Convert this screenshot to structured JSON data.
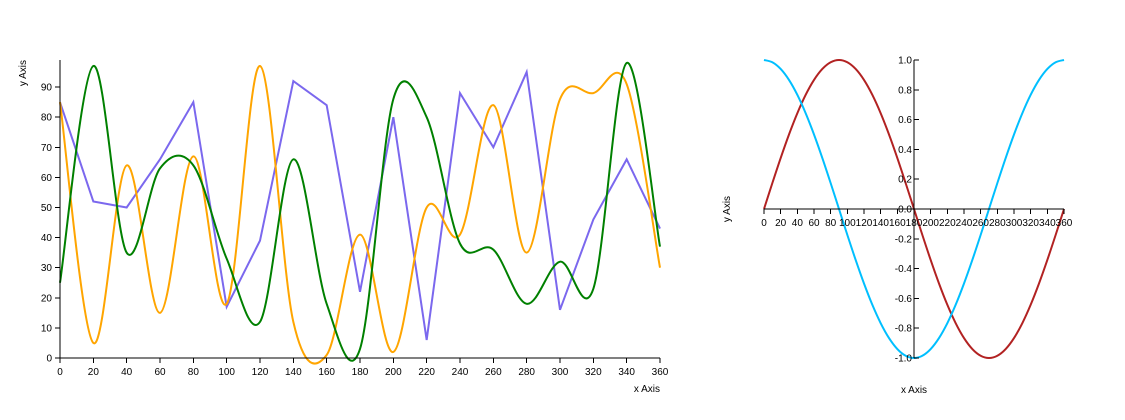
{
  "chart_data": [
    {
      "type": "line",
      "xlabel": "x Axis",
      "ylabel": "y Axis",
      "xlim": [
        0,
        360
      ],
      "ylim": [
        0,
        99
      ],
      "x_ticks": [
        0,
        20,
        40,
        60,
        80,
        100,
        120,
        140,
        160,
        180,
        200,
        220,
        240,
        260,
        280,
        300,
        320,
        340,
        360
      ],
      "y_ticks": [
        0,
        10,
        20,
        30,
        40,
        50,
        60,
        70,
        80,
        90
      ],
      "grid": false,
      "series": [
        {
          "color": "#7b68ee",
          "curve": "linear",
          "points": [
            [
              0,
              85
            ],
            [
              20,
              52
            ],
            [
              40,
              50
            ],
            [
              60,
              66
            ],
            [
              80,
              85
            ],
            [
              100,
              17
            ],
            [
              120,
              39
            ],
            [
              140,
              92
            ],
            [
              160,
              84
            ],
            [
              180,
              22
            ],
            [
              200,
              80
            ],
            [
              220,
              6
            ],
            [
              240,
              88
            ],
            [
              260,
              70
            ],
            [
              280,
              95
            ],
            [
              300,
              16
            ],
            [
              320,
              46
            ],
            [
              340,
              66
            ],
            [
              360,
              43
            ]
          ]
        },
        {
          "color": "#ffa500",
          "curve": "smooth",
          "points": [
            [
              0,
              85
            ],
            [
              20,
              5
            ],
            [
              40,
              64
            ],
            [
              60,
              15
            ],
            [
              80,
              67
            ],
            [
              100,
              18
            ],
            [
              120,
              97
            ],
            [
              140,
              12
            ],
            [
              160,
              1
            ],
            [
              180,
              41
            ],
            [
              200,
              2
            ],
            [
              220,
              50
            ],
            [
              240,
              41
            ],
            [
              260,
              84
            ],
            [
              280,
              35
            ],
            [
              300,
              86
            ],
            [
              320,
              88
            ],
            [
              340,
              91
            ],
            [
              360,
              30
            ]
          ]
        },
        {
          "color": "#008000",
          "curve": "smooth",
          "points": [
            [
              0,
              25
            ],
            [
              20,
              97
            ],
            [
              40,
              35
            ],
            [
              60,
              63
            ],
            [
              80,
              64
            ],
            [
              100,
              33
            ],
            [
              120,
              12
            ],
            [
              140,
              66
            ],
            [
              160,
              18
            ],
            [
              180,
              3
            ],
            [
              200,
              86
            ],
            [
              220,
              80
            ],
            [
              240,
              38
            ],
            [
              260,
              36
            ],
            [
              280,
              18
            ],
            [
              300,
              32
            ],
            [
              320,
              23
            ],
            [
              340,
              98
            ],
            [
              360,
              37
            ]
          ]
        }
      ]
    },
    {
      "type": "line",
      "xlabel": "x Axis",
      "ylabel": "y Axis",
      "xlim": [
        0,
        360
      ],
      "ylim": [
        -1,
        1
      ],
      "x_ticks": [
        0,
        20,
        40,
        60,
        80,
        100,
        120,
        140,
        160,
        180,
        200,
        220,
        240,
        260,
        280,
        300,
        320,
        340,
        360
      ],
      "y_ticks": [
        -1.0,
        -0.8,
        -0.6,
        -0.4,
        -0.2,
        0.0,
        0.2,
        0.4,
        0.6,
        0.8,
        1.0
      ],
      "grid": false,
      "series": [
        {
          "function": "sin",
          "color": "#b22222",
          "curve": "smooth",
          "x_step": 10
        },
        {
          "function": "cos",
          "color": "#00bfff",
          "curve": "smooth",
          "x_step": 10
        }
      ]
    }
  ]
}
